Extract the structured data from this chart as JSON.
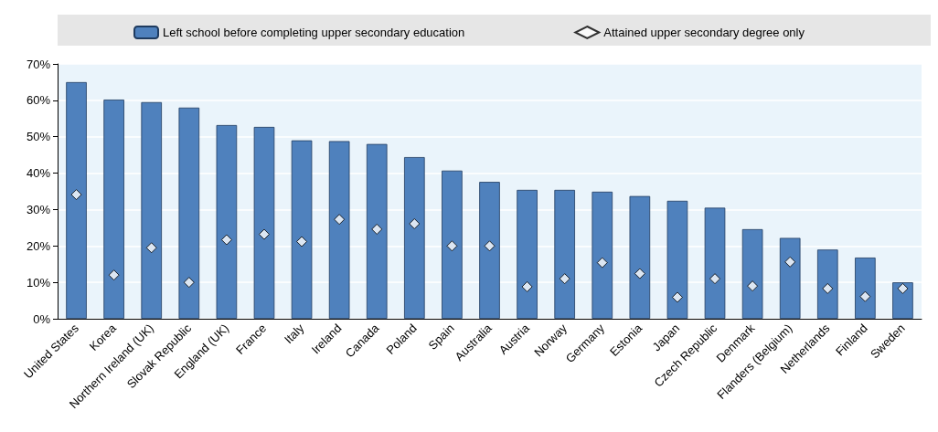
{
  "chart_data": {
    "type": "bar",
    "categories": [
      "United States",
      "Korea",
      "Northern Ireland (UK)",
      "Slovak Republic",
      "England (UK)",
      "France",
      "Italy",
      "Ireland",
      "Canada",
      "Poland",
      "Spain",
      "Australia",
      "Austria",
      "Norway",
      "Germany",
      "Estonia",
      "Japan",
      "Czech Republic",
      "Denmark",
      "Flanders (Belgium)",
      "Netherlands",
      "Finland",
      "Sweden"
    ],
    "series": [
      {
        "name": "Left school before completing upper secondary education",
        "type": "bar",
        "color": "#4f81bd",
        "values": [
          65,
          60.2,
          59.5,
          58,
          53.2,
          52.7,
          49,
          48.8,
          48,
          44.4,
          40.7,
          37.6,
          35.4,
          35.4,
          34.9,
          33.7,
          32.4,
          30.5,
          24.6,
          22.2,
          19,
          16.8,
          10
        ]
      },
      {
        "name": "Attained upper secondary degree only",
        "type": "scatter",
        "color": "#ffffff",
        "marker": "diamond",
        "x": [
          "United States",
          "Korea",
          "Northern Ireland (UK)",
          "Slovak Republic",
          "England (UK)",
          "France",
          "Italy",
          "Ireland",
          "Canada",
          "Poland",
          "Spain",
          "Australia",
          "Austria",
          "Norway",
          "Germany",
          "Estonia",
          "Japan",
          "Czech Republic",
          "Denmark",
          "Flanders (Belgium)",
          "Netherlands",
          "Finland",
          "Sweden"
        ],
        "values": [
          34.1,
          12,
          19.5,
          10,
          21.7,
          23.2,
          21.2,
          27.3,
          24.6,
          26.1,
          20,
          20,
          8.8,
          11,
          15.4,
          12.4,
          5.9,
          11,
          9,
          15.6,
          8.3,
          6.1,
          8.3
        ]
      }
    ],
    "ylim": [
      0,
      70
    ],
    "yticks": [
      {
        "value": 0,
        "label": "0%"
      },
      {
        "value": 10,
        "label": "10%"
      },
      {
        "value": 20,
        "label": "20%"
      },
      {
        "value": 30,
        "label": "30%"
      },
      {
        "value": 40,
        "label": "40%"
      },
      {
        "value": 50,
        "label": "50%"
      },
      {
        "value": 60,
        "label": "60%"
      },
      {
        "value": 70,
        "label": "70%"
      }
    ],
    "grid": "y",
    "legend": "top"
  }
}
